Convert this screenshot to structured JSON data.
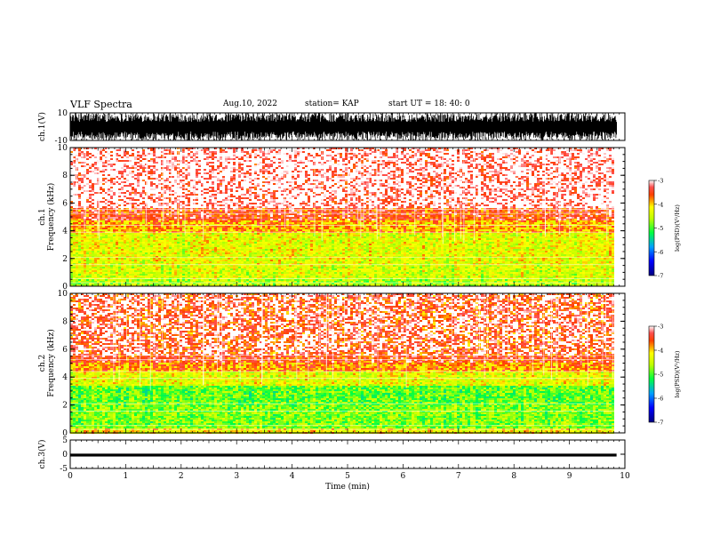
{
  "header": {
    "title": "VLF Spectra",
    "date": "Aug.10, 2022",
    "station": "station= KAP",
    "start": "start  UT  =   18: 40: 0"
  },
  "chart_data": [
    {
      "type": "line",
      "panel": "ch1-waveform",
      "ylabel": "ch.1(V)",
      "ylim": [
        -10,
        10
      ],
      "yticks": [
        "10",
        "-10"
      ],
      "xlim": [
        0,
        10
      ],
      "description_values": {
        "signal_range": [
          -10,
          10
        ],
        "data_end_min": 9.85
      }
    },
    {
      "type": "heatmap",
      "panel": "ch1-spectrogram",
      "ylabel": "ch.1\nFrequency (kHz)",
      "ylim": [
        0,
        10
      ],
      "yticks": [
        "0",
        "2",
        "4",
        "6",
        "8",
        "10"
      ],
      "xlim": [
        0,
        10
      ],
      "bands": [
        {
          "f": [
            0,
            0.5
          ],
          "level": -4.6
        },
        {
          "f": [
            0.5,
            1.5
          ],
          "level": -4.4
        },
        {
          "f": [
            1.5,
            3.8
          ],
          "level": -4.3
        },
        {
          "f": [
            3.8,
            4.8
          ],
          "level": -3.9
        },
        {
          "f": [
            4.8,
            5.6
          ],
          "level": -3.5
        },
        {
          "f": [
            5.6,
            10
          ],
          "level": -3.2
        }
      ],
      "colorbar": {
        "label": "log(PSD)(V²/Hz)",
        "range": [
          -7,
          -3
        ],
        "ticks": [
          "-3",
          "-4",
          "-5",
          "-6",
          "-7"
        ]
      }
    },
    {
      "type": "heatmap",
      "panel": "ch2-spectrogram",
      "ylabel": "ch.2\nFrequency (kHz)",
      "ylim": [
        0,
        10
      ],
      "yticks": [
        "0",
        "2",
        "4",
        "6",
        "8",
        "10"
      ],
      "xlim": [
        0,
        10
      ],
      "bands": [
        {
          "f": [
            0,
            0.3
          ],
          "level": -4.2
        },
        {
          "f": [
            0.3,
            2.0
          ],
          "level": -4.8
        },
        {
          "f": [
            2.0,
            3.4
          ],
          "level": -4.9
        },
        {
          "f": [
            3.4,
            4.4
          ],
          "level": -4.3
        },
        {
          "f": [
            4.4,
            5.0
          ],
          "level": -3.8
        },
        {
          "f": [
            5.0,
            10
          ],
          "level": -3.5
        }
      ],
      "colorbar": {
        "label": "log(PSD)(V²/Hz)",
        "range": [
          -7,
          -3
        ],
        "ticks": [
          "-3",
          "-4",
          "-5",
          "-6",
          "-7"
        ]
      }
    },
    {
      "type": "line",
      "panel": "ch3-waveform",
      "ylabel": "ch.3(V)",
      "ylim": [
        -5,
        5
      ],
      "yticks": [
        "5",
        "0",
        "-5"
      ],
      "xlim": [
        0,
        10
      ],
      "xticks": [
        "0",
        "1",
        "2",
        "3",
        "4",
        "5",
        "6",
        "7",
        "8",
        "9",
        "10"
      ],
      "xlabel": "Time (min)",
      "description_values": {
        "signal_range": [
          -0.8,
          0.2
        ],
        "data_end_min": 9.85
      }
    }
  ],
  "colors": {
    "frame": "#000000",
    "waveform": "#000000"
  }
}
